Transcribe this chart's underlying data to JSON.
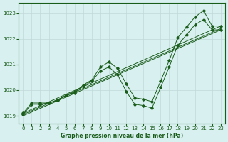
{
  "title": "Graphe pression niveau de la mer (hPa)",
  "bg_color": "#d8f0f0",
  "grid_color": "#c0d8d8",
  "line_color": "#1a5c1a",
  "xlim": [
    -0.5,
    23.5
  ],
  "ylim": [
    1018.7,
    1023.4
  ],
  "yticks": [
    1019,
    1020,
    1021,
    1022,
    1023
  ],
  "xticks": [
    0,
    1,
    2,
    3,
    4,
    5,
    6,
    7,
    8,
    9,
    10,
    11,
    12,
    13,
    14,
    15,
    16,
    17,
    18,
    19,
    20,
    21,
    22,
    23
  ],
  "series_wavy1": {
    "x": [
      0,
      1,
      2,
      3,
      4,
      5,
      6,
      7,
      8,
      9,
      10,
      11,
      12,
      13,
      14,
      15,
      16,
      17,
      18,
      19,
      20,
      21,
      22,
      23
    ],
    "y": [
      1019.1,
      1019.5,
      1019.5,
      1019.5,
      1019.6,
      1019.8,
      1019.9,
      1020.2,
      1020.4,
      1020.9,
      1021.1,
      1020.85,
      1020.25,
      1019.7,
      1019.65,
      1019.55,
      1020.35,
      1021.15,
      1022.05,
      1022.45,
      1022.85,
      1023.1,
      1022.5,
      1022.5
    ]
  },
  "series_wavy2": {
    "x": [
      0,
      1,
      2,
      3,
      4,
      5,
      6,
      7,
      8,
      9,
      10,
      11,
      12,
      13,
      14,
      15,
      16,
      17,
      18,
      19,
      20,
      21,
      22,
      23
    ],
    "y": [
      1019.05,
      1019.45,
      1019.45,
      1019.5,
      1019.6,
      1019.8,
      1019.95,
      1020.15,
      1020.35,
      1020.75,
      1020.9,
      1020.6,
      1019.95,
      1019.45,
      1019.4,
      1019.3,
      1020.1,
      1020.9,
      1021.75,
      1022.15,
      1022.55,
      1022.75,
      1022.35,
      1022.35
    ]
  },
  "series_linear1": {
    "x": [
      0,
      23
    ],
    "y": [
      1019.1,
      1022.5
    ]
  },
  "series_linear2": {
    "x": [
      0,
      23
    ],
    "y": [
      1019.05,
      1022.4
    ]
  },
  "series_linear3": {
    "x": [
      0,
      23
    ],
    "y": [
      1019.0,
      1022.35
    ]
  }
}
